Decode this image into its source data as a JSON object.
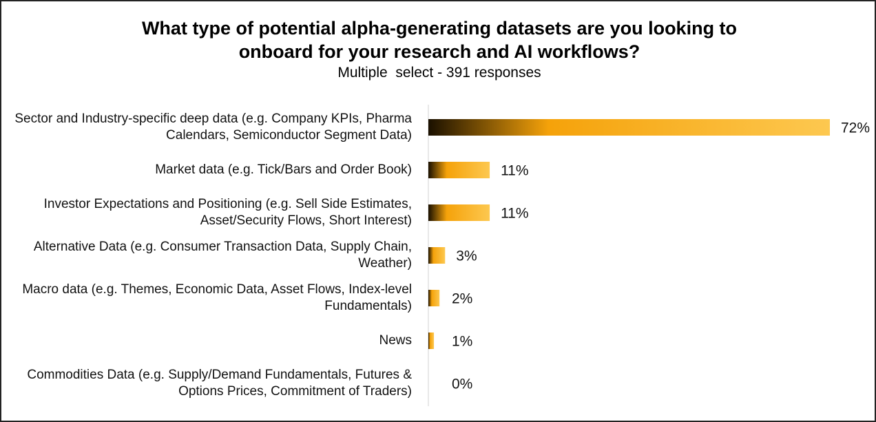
{
  "chart_data": {
    "type": "bar",
    "orientation": "horizontal",
    "title": "What type of potential alpha-generating datasets are you looking to onboard for your research and AI workflows?",
    "subtitle": "Multiple  select - 391 responses",
    "categories": [
      "Sector and Industry-specific deep data (e.g. Company KPIs, Pharma Calendars, Semiconductor Segment Data)",
      "Market data (e.g. Tick/Bars and Order Book)",
      "Investor Expectations and Positioning (e.g. Sell Side Estimates, Asset/Security Flows, Short Interest)",
      "Alternative Data (e.g. Consumer Transaction Data, Supply Chain, Weather)",
      "Macro data (e.g. Themes, Economic Data, Asset Flows, Index-level Fundamentals)",
      "News",
      "Commodities Data (e.g. Supply/Demand Fundamentals, Futures & Options Prices, Commitment of Traders)"
    ],
    "values": [
      72,
      11,
      11,
      3,
      2,
      1,
      0
    ],
    "value_labels": [
      "72%",
      "11%",
      "11%",
      "3%",
      "2%",
      "1%",
      "0%"
    ],
    "color": [
      "#1a1000",
      "#f5a20a",
      "#fdc850"
    ]
  }
}
